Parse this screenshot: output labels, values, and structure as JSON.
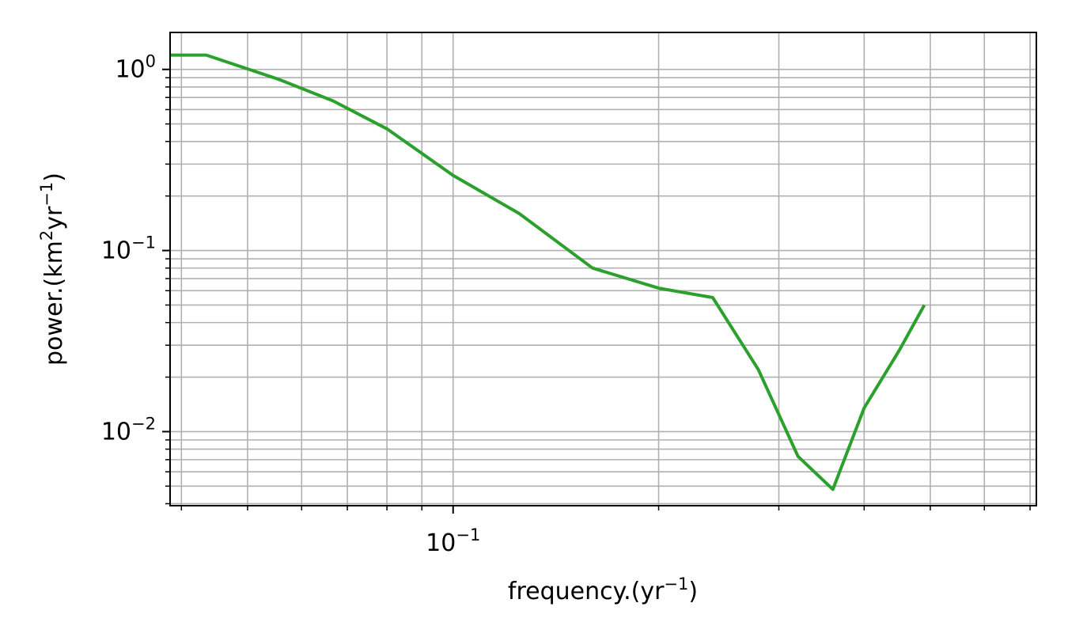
{
  "chart_data": {
    "type": "line",
    "xscale": "log",
    "yscale": "log",
    "xlim": [
      0.0385,
      0.715
    ],
    "ylim": [
      0.0039,
      1.6
    ],
    "xlabel": {
      "base": "frequency.(yr",
      "sup": "−1",
      "tail": ")"
    },
    "ylabel": {
      "p1": "power.(km",
      "s1": "2",
      "p2": "yr",
      "s2": "−1",
      "p3": ")"
    },
    "x_major_ticks": [
      {
        "value": 0.1,
        "base": "10",
        "exp": "−1"
      }
    ],
    "y_major_ticks": [
      {
        "value": 1,
        "base": "10",
        "exp": "0"
      },
      {
        "value": 0.1,
        "base": "10",
        "exp": "−1"
      },
      {
        "value": 0.01,
        "base": "10",
        "exp": "−2"
      }
    ],
    "grid": true,
    "series": [
      {
        "color": "#2ca02c",
        "x": [
          0.0385,
          0.0435,
          0.0556,
          0.0667,
          0.08,
          0.1,
          0.125,
          0.16,
          0.2,
          0.24,
          0.28,
          0.32,
          0.36,
          0.4,
          0.45,
          0.49
        ],
        "y": [
          1.2,
          1.2,
          0.88,
          0.67,
          0.47,
          0.26,
          0.16,
          0.08,
          0.062,
          0.055,
          0.022,
          0.0073,
          0.0048,
          0.0135,
          0.028,
          0.05
        ]
      }
    ]
  }
}
